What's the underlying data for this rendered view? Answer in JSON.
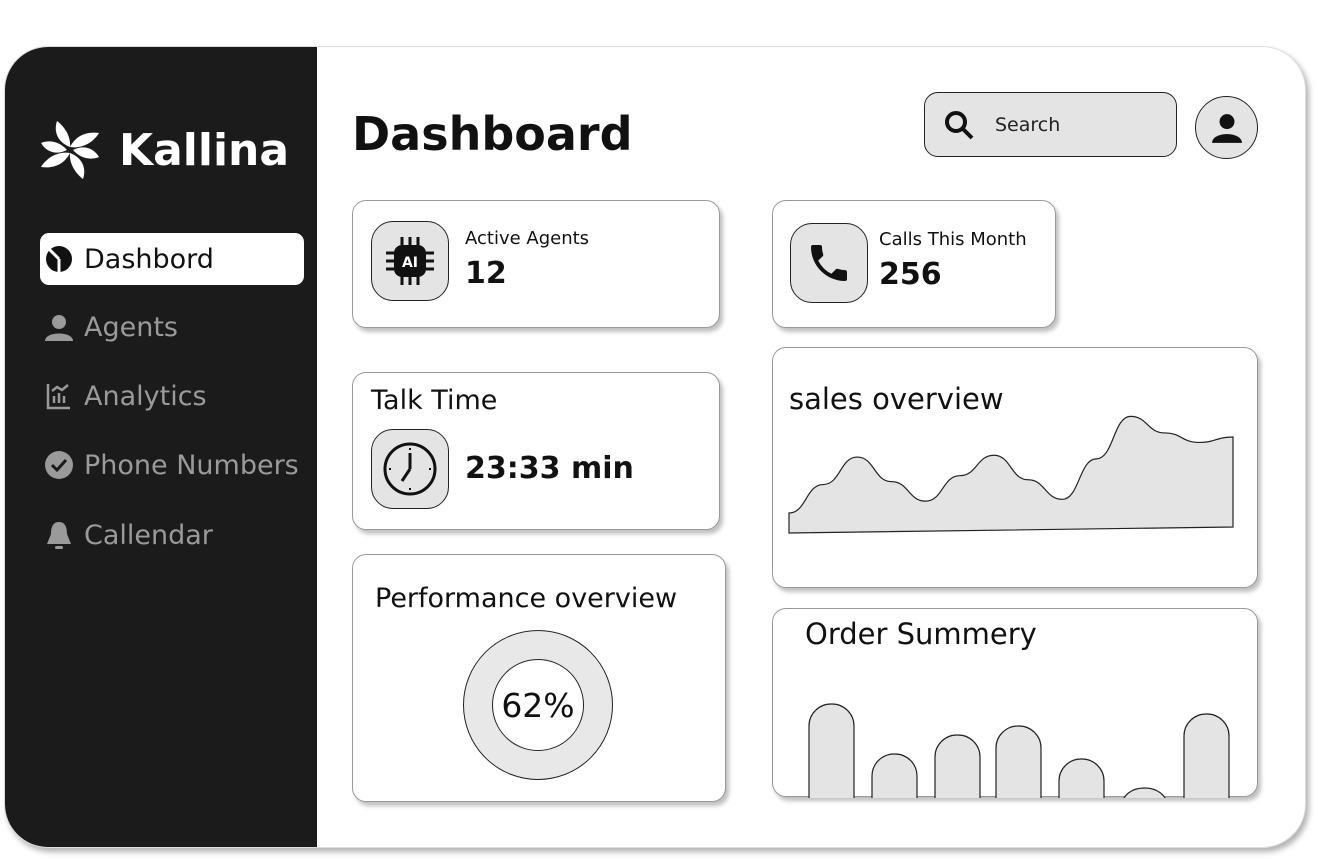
{
  "brand": {
    "name": "Kallina"
  },
  "sidebar": {
    "items": [
      {
        "label": "Dashbord",
        "icon": "pie-chart-icon",
        "active": true
      },
      {
        "label": "Agents",
        "icon": "user-icon"
      },
      {
        "label": "Analytics",
        "icon": "analytics-icon"
      },
      {
        "label": "Phone Numbers",
        "icon": "check-circle-icon"
      },
      {
        "label": "Callendar",
        "icon": "bell-icon"
      }
    ]
  },
  "header": {
    "title": "Dashboard",
    "search_placeholder": "Search"
  },
  "cards": {
    "active_agents": {
      "label": "Active Agents",
      "value": "12",
      "icon": "ai-chip-icon"
    },
    "calls": {
      "label": "Calls This Month",
      "value": "256",
      "icon": "phone-icon"
    },
    "talk_time": {
      "label": "Talk Time",
      "value": "23:33 min",
      "icon": "clock-icon"
    },
    "performance": {
      "title": "Performance overview",
      "value": "62%"
    },
    "sales": {
      "title": "sales overview"
    },
    "orders": {
      "title": "Order Summery"
    }
  },
  "chart_data": [
    {
      "type": "area",
      "title": "sales overview",
      "values": [
        20,
        48,
        75,
        50,
        30,
        55,
        75,
        50,
        30,
        70,
        112,
        95,
        85,
        90
      ]
    },
    {
      "type": "bar",
      "title": "Order Summery",
      "values": [
        118,
        68,
        87,
        96,
        63,
        34,
        108
      ]
    }
  ],
  "colors": {
    "sidebar": "#1b1b1b",
    "fill": "#e4e4e4"
  }
}
